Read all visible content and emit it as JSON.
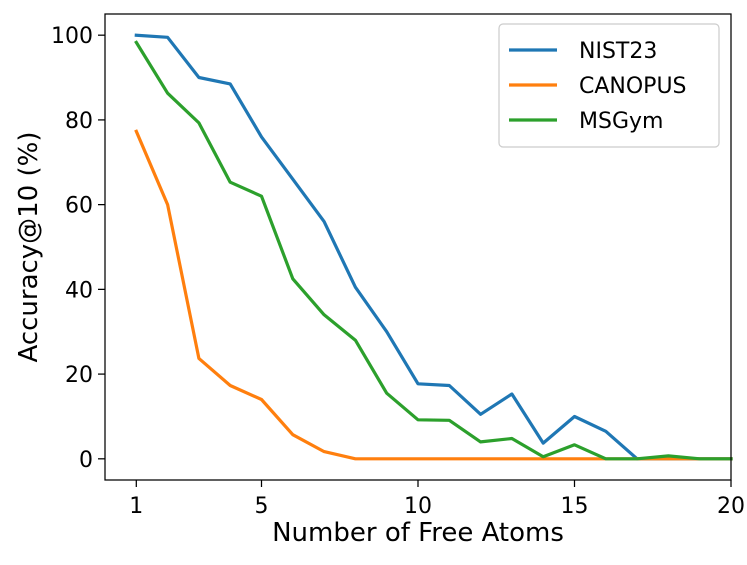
{
  "chart_data": {
    "type": "line",
    "title": "",
    "xlabel": "Number of Free Atoms",
    "ylabel": "Accuracy@10 (%)",
    "xlim": [
      0.0,
      20.0
    ],
    "ylim": [
      -5,
      105
    ],
    "xticks": [
      1,
      5,
      10,
      15,
      20
    ],
    "yticks": [
      0,
      20,
      40,
      60,
      80,
      100
    ],
    "grid": false,
    "legend_position": "top-right",
    "x": [
      1,
      2,
      3,
      4,
      5,
      6,
      7,
      8,
      9,
      10,
      11,
      12,
      13,
      14,
      15,
      16,
      17,
      18,
      19,
      20
    ],
    "series": [
      {
        "name": "NIST23",
        "color": "#1f77b4",
        "values": [
          100,
          99.5,
          90,
          88.5,
          76,
          66,
          56,
          40.5,
          30,
          17.7,
          17.3,
          10.5,
          15.3,
          3.7,
          10,
          6.5,
          0,
          0,
          0,
          0
        ]
      },
      {
        "name": "CANOPUS",
        "color": "#ff7f0e",
        "values": [
          77.3,
          60,
          23.7,
          17.3,
          14,
          5.7,
          1.7,
          0,
          0,
          0,
          0,
          0,
          0,
          0,
          0,
          0,
          0,
          0,
          0,
          0
        ]
      },
      {
        "name": "MSGym",
        "color": "#2ca02c",
        "values": [
          98.3,
          86.3,
          79.3,
          65.3,
          62,
          42.5,
          34,
          28,
          15.5,
          9.2,
          9.1,
          4,
          4.8,
          0.5,
          3.3,
          0,
          0,
          0.7,
          0,
          0
        ]
      }
    ]
  }
}
